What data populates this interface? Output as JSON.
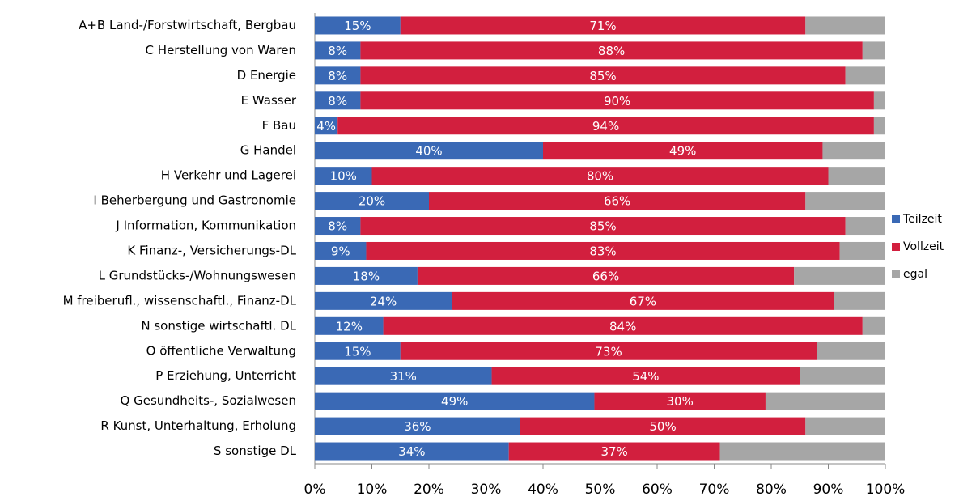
{
  "chart_data": {
    "type": "stacked-bar-horizontal",
    "categories": [
      "A+B Land-/Forstwirtschaft, Bergbau",
      "C Herstellung von Waren",
      "D Energie",
      "E Wasser",
      "F Bau",
      "G Handel",
      "H Verkehr und Lagerei",
      "I Beherbergung und Gastronomie",
      "J Information, Kommunikation",
      "K Finanz-, Versicherungs-DL",
      "L Grundstücks-/Wohnungswesen",
      "M freiberufl., wissenschaftl., Finanz-DL",
      "N sonstige wirtschaftl. DL",
      "O öffentliche Verwaltung",
      "P Erziehung, Unterricht",
      "Q Gesundheits-, Sozialwesen",
      "R Kunst, Unterhaltung, Erholung",
      "S sonstige DL"
    ],
    "series": [
      {
        "name": "Teilzeit",
        "color": "#3a69b5",
        "values": [
          15,
          8,
          8,
          8,
          4,
          40,
          10,
          20,
          8,
          9,
          18,
          24,
          12,
          15,
          31,
          49,
          36,
          34
        ],
        "value_labels": [
          "15%",
          "8%",
          "8%",
          "8%",
          "4%",
          "40%",
          "10%",
          "20%",
          "8%",
          "9%",
          "18%",
          "24%",
          "12%",
          "15%",
          "31%",
          "49%",
          "36%",
          "34%"
        ]
      },
      {
        "name": "Vollzeit",
        "color": "#d21f3e",
        "values": [
          71,
          88,
          85,
          90,
          94,
          49,
          80,
          66,
          85,
          83,
          66,
          67,
          84,
          73,
          54,
          30,
          50,
          37
        ],
        "value_labels": [
          "71%",
          "88%",
          "85%",
          "90%",
          "94%",
          "49%",
          "80%",
          "66%",
          "85%",
          "83%",
          "66%",
          "67%",
          "84%",
          "73%",
          "54%",
          "30%",
          "50%",
          "37%"
        ]
      },
      {
        "name": "egal",
        "color": "#a6a6a6",
        "values": [
          14,
          4,
          7,
          2,
          2,
          11,
          10,
          14,
          7,
          8,
          16,
          9,
          4,
          12,
          15,
          21,
          14,
          29
        ]
      }
    ],
    "xlim": [
      0,
      100
    ],
    "xticks": [
      {
        "value": 0,
        "label": "0%"
      },
      {
        "value": 10,
        "label": "10%"
      },
      {
        "value": 20,
        "label": "20%"
      },
      {
        "value": 30,
        "label": "30%"
      },
      {
        "value": 40,
        "label": "40%"
      },
      {
        "value": 50,
        "label": "50%"
      },
      {
        "value": 60,
        "label": "60%"
      },
      {
        "value": 70,
        "label": "70%"
      },
      {
        "value": 80,
        "label": "80%"
      },
      {
        "value": 90,
        "label": "90%"
      },
      {
        "value": 100,
        "label": "100%"
      }
    ],
    "legend": "right"
  }
}
